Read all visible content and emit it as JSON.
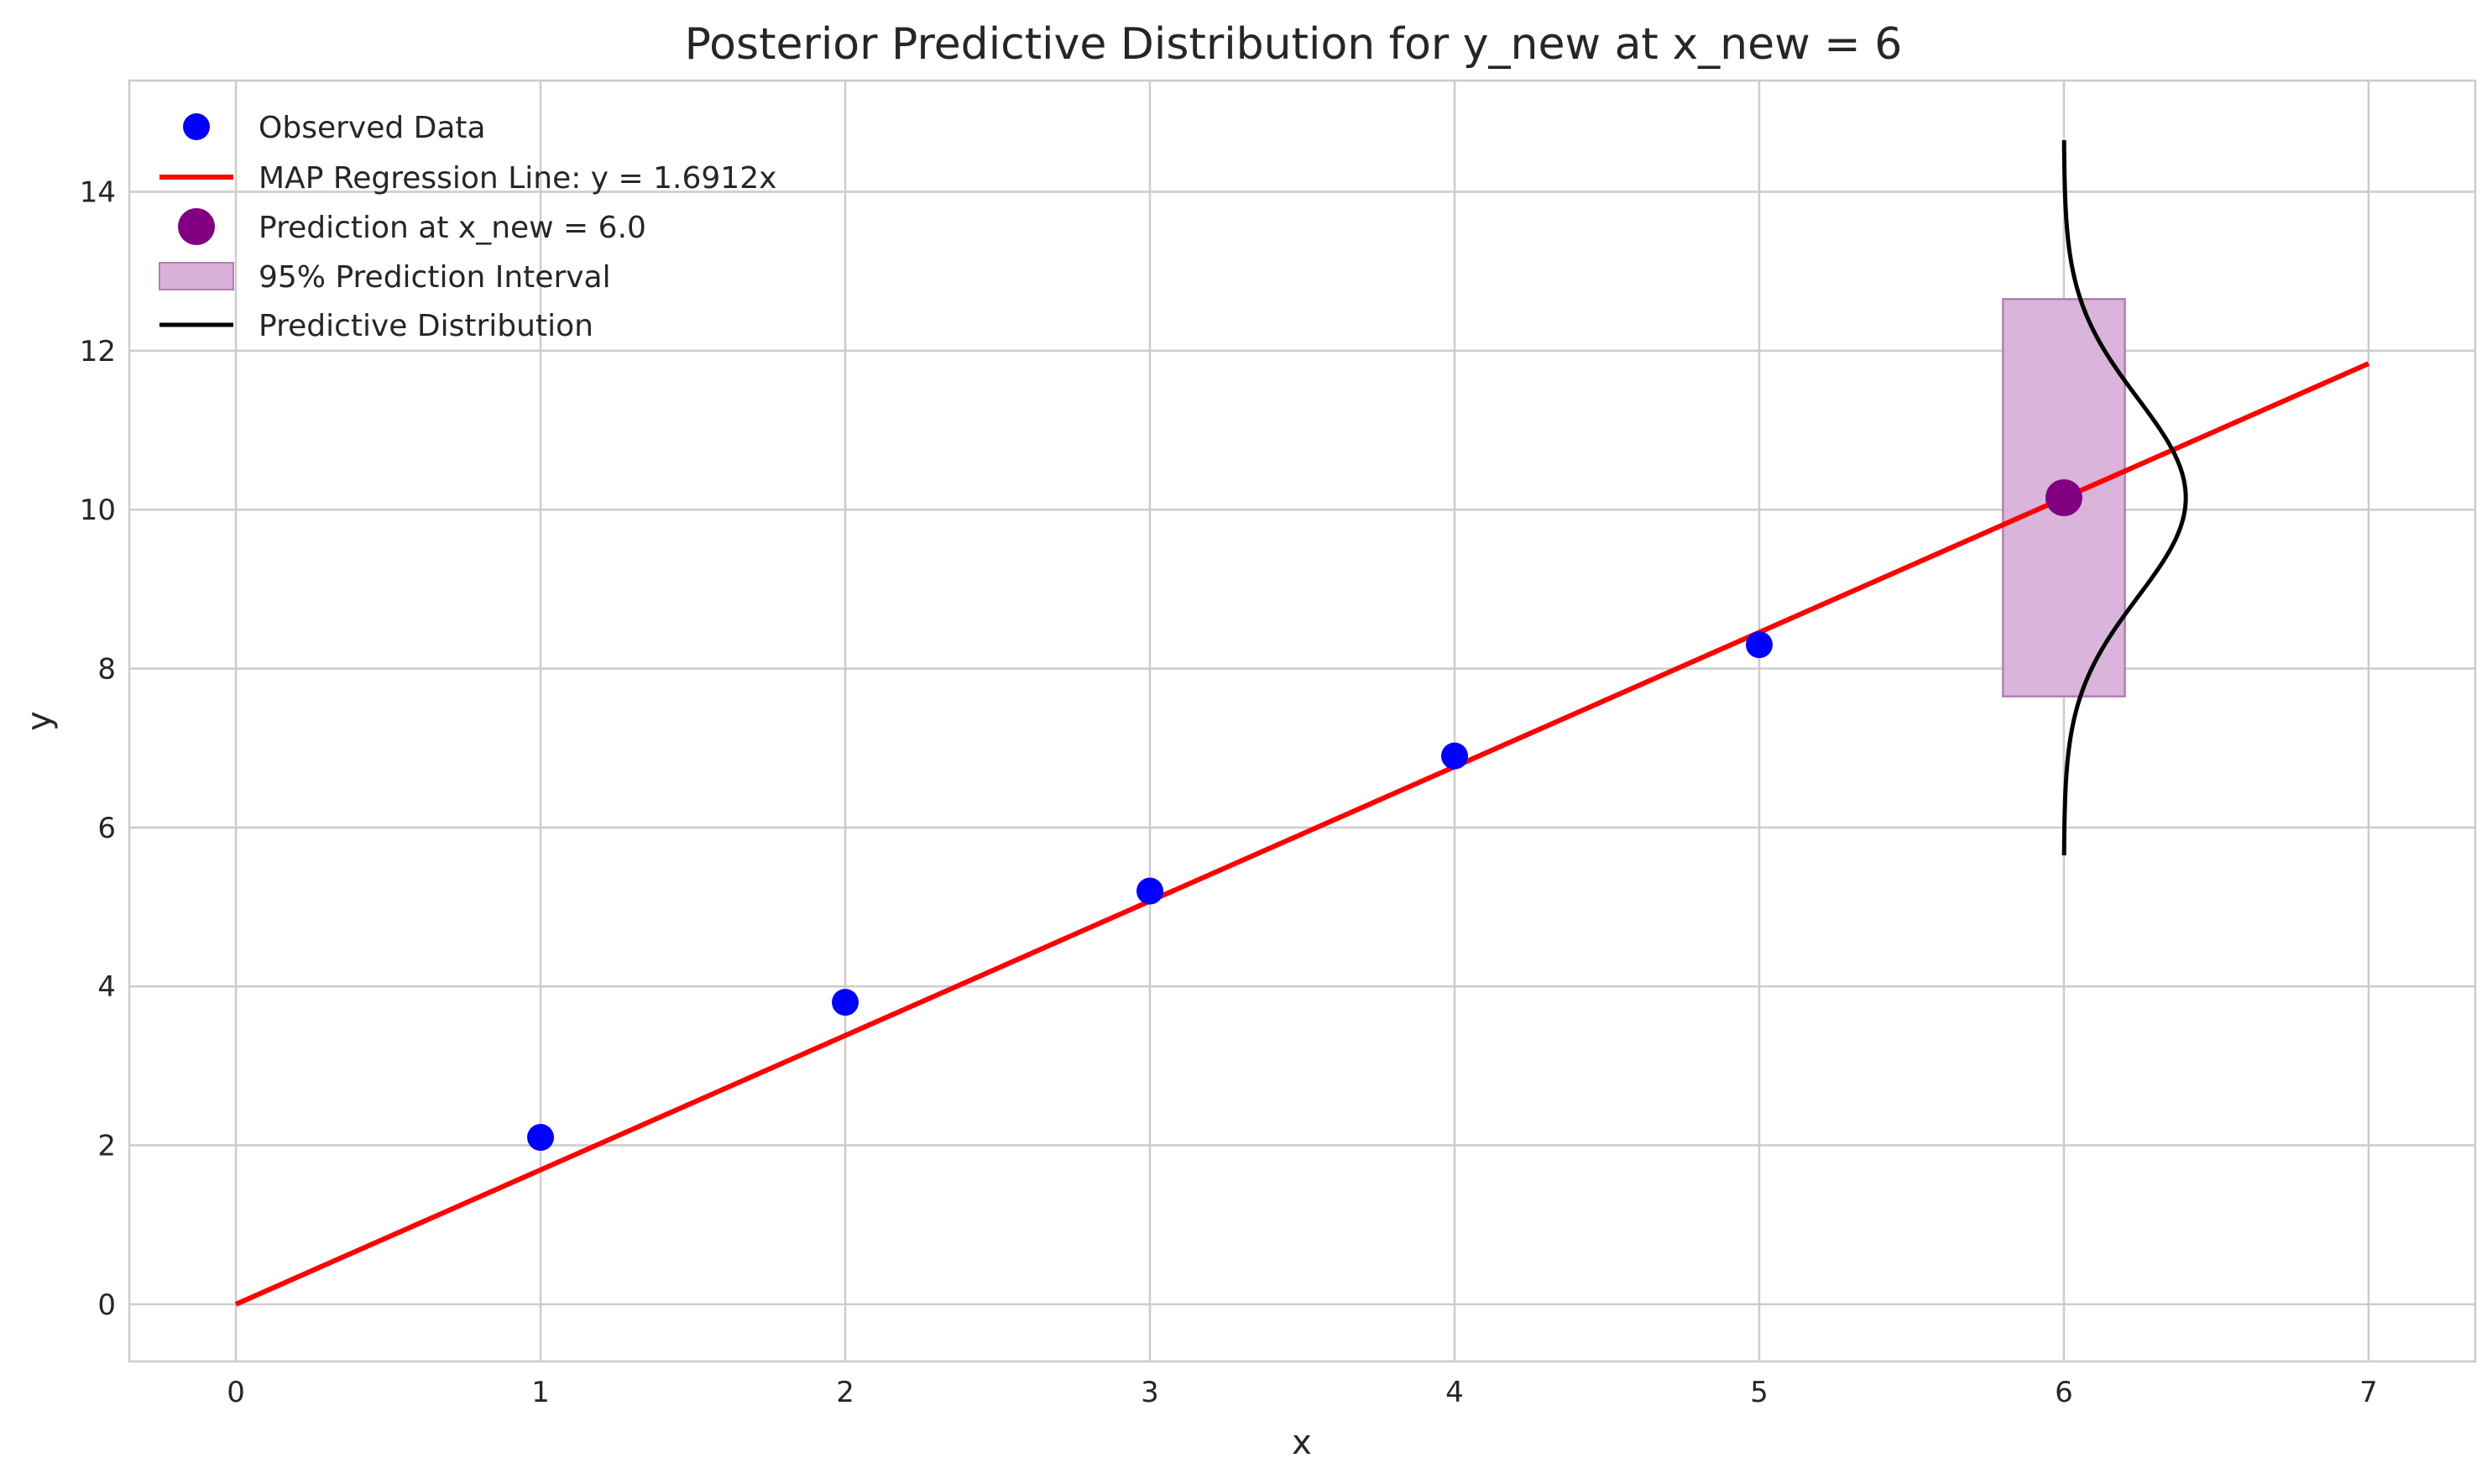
{
  "chart_data": {
    "type": "scatter",
    "title": "Posterior Predictive Distribution for y_new at x_new = 6",
    "xlabel": "x",
    "ylabel": "y",
    "xlim": [
      -0.35,
      7.35
    ],
    "ylim": [
      -0.72,
      15.4
    ],
    "xticks": [
      0,
      1,
      2,
      3,
      4,
      5,
      6,
      7
    ],
    "yticks": [
      0,
      2,
      4,
      6,
      8,
      10,
      12,
      14
    ],
    "grid": true,
    "legend_position": "top-left",
    "observed": {
      "name": "Observed Data",
      "color": "#0000ff",
      "x": [
        1,
        2,
        3,
        4,
        5
      ],
      "y": [
        2.1,
        3.8,
        5.2,
        6.9,
        8.3
      ]
    },
    "regression_line": {
      "name": "MAP Regression Line: y = 1.6912x",
      "color": "#ff0000",
      "slope": 1.6912,
      "x_range": [
        0,
        7
      ]
    },
    "prediction": {
      "name": "Prediction at x_new = 6.0",
      "color": "#800080",
      "x": 6,
      "y": 10.15
    },
    "interval": {
      "name": "95% Prediction Interval",
      "color": "#d8b0d8",
      "edge_color": "#b27fb2",
      "x_range": [
        5.8,
        6.2
      ],
      "y_range": [
        7.65,
        12.65
      ]
    },
    "predictive_distribution": {
      "name": "Predictive Distribution",
      "color": "#000000",
      "center_x": 6,
      "mean": 10.15,
      "sd": 1.25,
      "y_range": [
        5.65,
        14.65
      ],
      "peak_width": 0.4
    }
  }
}
